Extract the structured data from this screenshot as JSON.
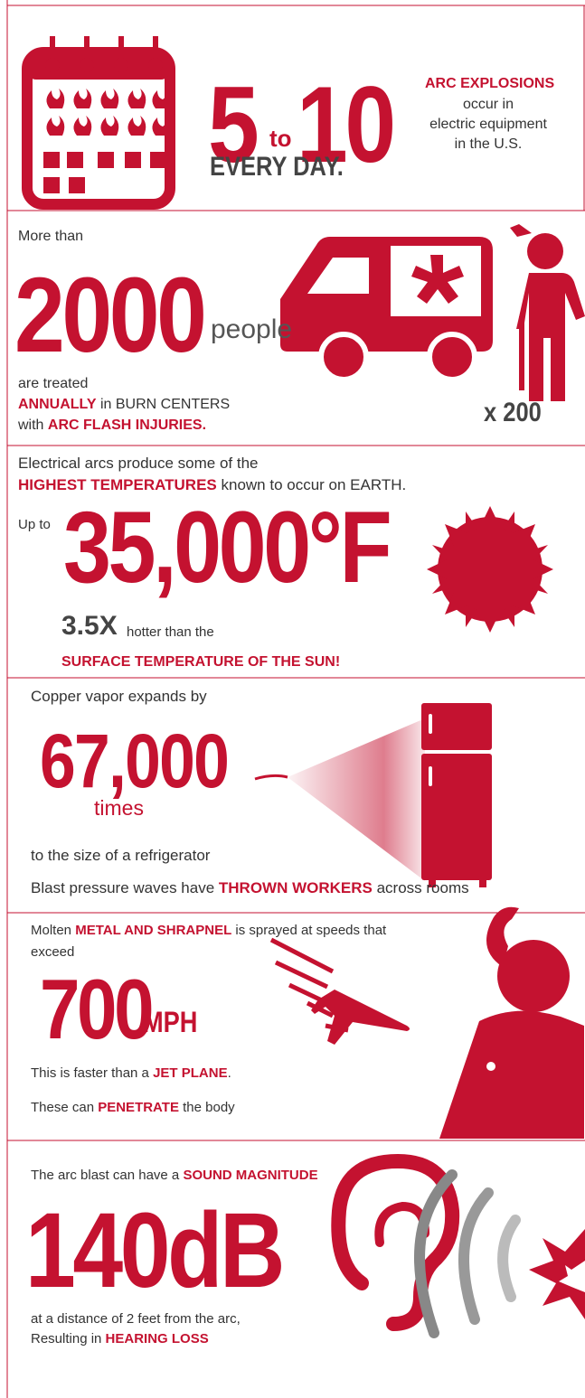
{
  "sections": [
    {
      "number_from": "5",
      "connector": "to",
      "number_to": "10",
      "caption": "EVERY DAY.",
      "highlight": "ARC EXPLOSIONS",
      "lines": [
        "occur in",
        "electric equipment",
        "in the U.S."
      ]
    },
    {
      "intro": "More than",
      "number": "2000",
      "unit": "people",
      "line1": "are treated",
      "line2": [
        "ANNUALLY",
        " in BURN CENTERS"
      ],
      "line3": [
        "with ",
        "ARC FLASH INJURIES."
      ],
      "multiplier": "x 200"
    },
    {
      "line1": "Electrical arcs produce some of the",
      "line2": [
        "HIGHEST TEMPERATURES",
        " known to occur on EARTH."
      ],
      "prefix": "Up to",
      "number": "35,000°F",
      "factor": "3.5X",
      "factor_text": "hotter than the",
      "line3": "SURFACE TEMPERATURE OF THE SUN!"
    },
    {
      "intro": "Copper vapor expands by",
      "number": "67,000",
      "unit": "times",
      "line1": "to the size of a refrigerator",
      "line2": [
        "Blast pressure waves have ",
        "THROWN WORKERS",
        " across rooms"
      ]
    },
    {
      "line1": [
        "Molten ",
        "METAL AND SHRAPNEL",
        " is sprayed at speeds that"
      ],
      "line1b": "exceed",
      "number": "700",
      "unit": "MPH",
      "line2": [
        "This is faster than a ",
        "JET PLANE",
        "."
      ],
      "line3": [
        "These can ",
        "PENETRATE",
        " the body"
      ]
    },
    {
      "line1": [
        "The arc blast can have a ",
        "SOUND MAGNITUDE"
      ],
      "number": "140dB",
      "line2": "at a distance of 2 feet from the arc,",
      "line3": [
        "Resulting in ",
        "HEARING LOSS"
      ]
    }
  ]
}
